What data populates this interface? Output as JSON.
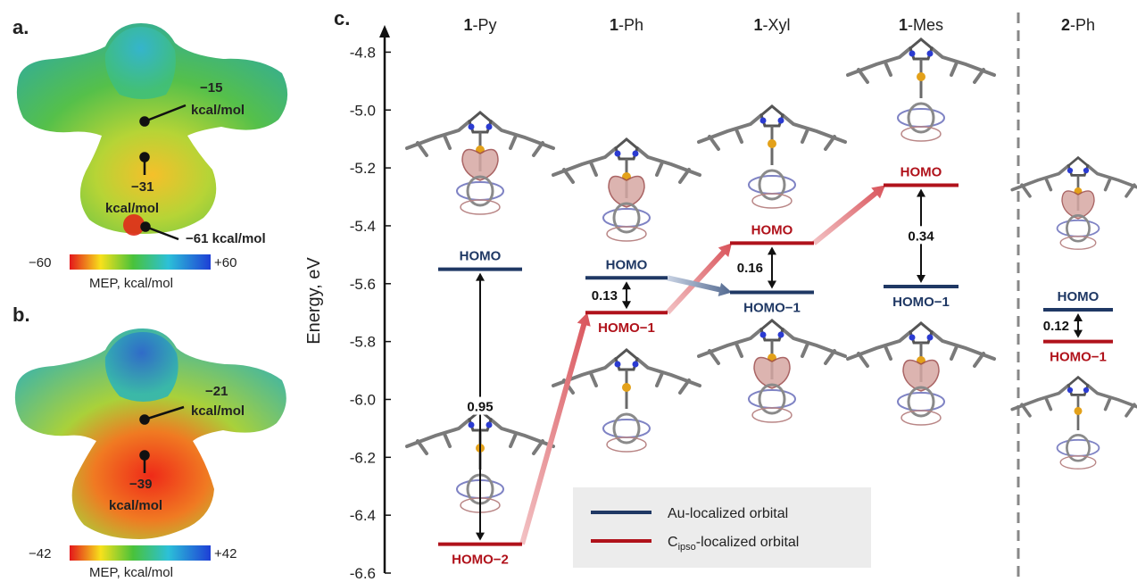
{
  "panels": {
    "a": "a.",
    "b": "b.",
    "c": "c."
  },
  "mep_a": {
    "values": [
      "−15",
      "kcal/mol",
      "−31",
      "kcal/mol",
      "−61 kcal/mol"
    ],
    "scale_min": "−60",
    "scale_max": "+60",
    "scale_label": "MEP, kcal/mol"
  },
  "mep_b": {
    "values": [
      "−21",
      "kcal/mol",
      "−39",
      "kcal/mol"
    ],
    "scale_min": "−42",
    "scale_max": "+42",
    "scale_label": "MEP, kcal/mol"
  },
  "legend": {
    "au": "Au-localized orbital",
    "c_main": "C",
    "c_sub": "ipso",
    "c_rest": "-localized orbital"
  },
  "colors": {
    "au": "#1f3864",
    "c": "#b0121b",
    "arrow": "#d9535a"
  },
  "chart_data": {
    "type": "energy-level diagram",
    "ylabel": "Energy, eV",
    "ylim": [
      -6.6,
      -4.7
    ],
    "yticks": [
      -4.8,
      -5.0,
      -5.2,
      -5.4,
      -5.6,
      -5.8,
      -6.0,
      -6.2,
      -6.4,
      -6.6
    ],
    "columns": [
      {
        "bold": "1",
        "rest": "-Py"
      },
      {
        "bold": "1",
        "rest": "-Ph"
      },
      {
        "bold": "1",
        "rest": "-Xyl"
      },
      {
        "bold": "1",
        "rest": "-Mes"
      },
      {
        "bold": "2",
        "rest": "-Ph"
      }
    ],
    "levels": [
      {
        "column": 0,
        "label": "HOMO",
        "energy": -5.55,
        "type": "Au"
      },
      {
        "column": 0,
        "label": "HOMO−2",
        "energy": -6.5,
        "type": "Cipso"
      },
      {
        "column": 1,
        "label": "HOMO",
        "energy": -5.58,
        "type": "Au"
      },
      {
        "column": 1,
        "label": "HOMO−1",
        "energy": -5.7,
        "type": "Cipso"
      },
      {
        "column": 2,
        "label": "HOMO",
        "energy": -5.46,
        "type": "Cipso"
      },
      {
        "column": 2,
        "label": "HOMO−1",
        "energy": -5.63,
        "type": "Au"
      },
      {
        "column": 3,
        "label": "HOMO",
        "energy": -5.26,
        "type": "Cipso"
      },
      {
        "column": 3,
        "label": "HOMO−1",
        "energy": -5.61,
        "type": "Au"
      },
      {
        "column": 4,
        "label": "HOMO",
        "energy": -5.69,
        "type": "Au"
      },
      {
        "column": 4,
        "label": "HOMO−1",
        "energy": -5.8,
        "type": "Cipso"
      }
    ],
    "gaps": [
      {
        "column": 0,
        "value": "0.95"
      },
      {
        "column": 1,
        "value": "0.13"
      },
      {
        "column": 2,
        "value": "0.16"
      },
      {
        "column": 3,
        "value": "0.34"
      },
      {
        "column": 4,
        "value": "0.12"
      }
    ]
  }
}
